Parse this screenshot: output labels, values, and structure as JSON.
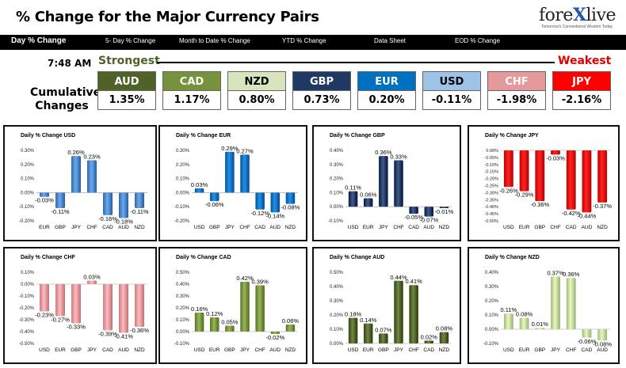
{
  "header": {
    "title": "% Change for the Major Currency Pairs",
    "logo_text": "forexlive",
    "logo_tag": "Tomorrow's Conventional Wisdom Today"
  },
  "tabs": [
    {
      "label": "Day % Change",
      "active": true
    },
    {
      "label": "5- Day % Change"
    },
    {
      "label": "Month to Date % Change"
    },
    {
      "label": "YTD % Change"
    },
    {
      "label": "Data Sheet"
    },
    {
      "label": "EOD % Change"
    }
  ],
  "time": "7:48 AM",
  "strongest_label": "Strongest",
  "weakest_label": "Weakest",
  "cumulative_label": "Cumulative Changes",
  "currencies": [
    {
      "name": "AUD",
      "value": "1.35%",
      "bg": "#4f6228",
      "fg": "#ffffff"
    },
    {
      "name": "CAD",
      "value": "1.17%",
      "bg": "#76923c",
      "fg": "#ffffff"
    },
    {
      "name": "NZD",
      "value": "0.80%",
      "bg": "#d7e4bd",
      "fg": "#000000"
    },
    {
      "name": "GBP",
      "value": "0.73%",
      "bg": "#1f3864",
      "fg": "#ffffff"
    },
    {
      "name": "EUR",
      "value": "0.20%",
      "bg": "#0070c0",
      "fg": "#ffffff"
    },
    {
      "name": "USD",
      "value": "-0.11%",
      "bg": "#9dc3e6",
      "fg": "#000000"
    },
    {
      "name": "CHF",
      "value": "-1.98%",
      "bg": "#e6999b",
      "fg": "#ffffff"
    },
    {
      "name": "JPY",
      "value": "-2.16%",
      "bg": "#ff0000",
      "fg": "#ffffff"
    }
  ],
  "chart_data": [
    {
      "type": "bar",
      "title": "Daily % Change USD",
      "categories": [
        "EUR",
        "GBP",
        "JPY",
        "CHF",
        "CAD",
        "AUD",
        "NZD"
      ],
      "values": [
        -0.03,
        -0.11,
        0.26,
        0.23,
        -0.16,
        -0.18,
        -0.11
      ],
      "labels": [
        "-0.03%",
        "-0.11%",
        "0.26%",
        "0.23%",
        "-0.16%",
        "-0.18%",
        "-0.11%"
      ],
      "ylim": [
        -0.2,
        0.3
      ],
      "yticks": [
        "0.30%",
        "0.20%",
        "0.10%",
        "0.00%",
        "-0.10%",
        "-0.20%"
      ],
      "color": "#4a86c8"
    },
    {
      "type": "bar",
      "title": "Daily % Change EUR",
      "categories": [
        "USD",
        "GBP",
        "JPY",
        "CHF",
        "CAD",
        "AUD",
        "NZD"
      ],
      "values": [
        0.03,
        -0.06,
        0.29,
        0.27,
        -0.12,
        -0.14,
        -0.08
      ],
      "labels": [
        "0.03%",
        "-0.06%",
        "0.29%",
        "0.27%",
        "-0.12%",
        "-0.14%",
        "-0.08%"
      ],
      "ylim": [
        -0.2,
        0.3
      ],
      "yticks": [
        "0.30%",
        "0.20%",
        "0.10%",
        "0.00%",
        "-0.10%",
        "-0.20%"
      ],
      "color": "#0070c0"
    },
    {
      "type": "bar",
      "title": "Daily % Change GBP",
      "categories": [
        "USD",
        "EUR",
        "JPY",
        "CHF",
        "CAD",
        "AUD",
        "NZD"
      ],
      "values": [
        0.11,
        0.06,
        0.36,
        0.33,
        -0.05,
        -0.07,
        -0.01
      ],
      "labels": [
        "0.11%",
        "0.06%",
        "0.36%",
        "0.33%",
        "-0.05%",
        "-0.07%",
        "-0.01%"
      ],
      "ylim": [
        -0.1,
        0.4
      ],
      "yticks": [
        "0.40%",
        "0.30%",
        "0.20%",
        "0.10%",
        "0.00%",
        "-0.10%"
      ],
      "color": "#1f3864"
    },
    {
      "type": "bar",
      "title": "Daily % Change JPY",
      "categories": [
        "USD",
        "EUR",
        "GBP",
        "CHF",
        "CAD",
        "AUD",
        "NZD"
      ],
      "values": [
        -0.26,
        -0.29,
        -0.36,
        -0.03,
        -0.42,
        -0.44,
        -0.37
      ],
      "labels": [
        "-0.26%",
        "-0.29%",
        "-0.36%",
        "-0.03%",
        "-0.42%",
        "-0.44%",
        "-0.37%"
      ],
      "ylim": [
        -0.5,
        0.0
      ],
      "yticks": [
        "0.00%",
        "-0.05%",
        "-0.10%",
        "-0.15%",
        "-0.20%",
        "-0.25%",
        "-0.30%",
        "-0.35%",
        "-0.40%",
        "-0.45%",
        "-0.50%"
      ],
      "color": "#e00000"
    },
    {
      "type": "bar",
      "title": "Daily % Change CHF",
      "categories": [
        "USD",
        "EUR",
        "GBP",
        "JPY",
        "CAD",
        "AUD",
        "NZD"
      ],
      "values": [
        -0.23,
        -0.27,
        -0.33,
        0.03,
        -0.39,
        -0.41,
        -0.36
      ],
      "labels": [
        "-0.23%",
        "-0.27%",
        "-0.33%",
        "0.03%",
        "-0.39%",
        "-0.41%",
        "-0.36%"
      ],
      "ylim": [
        -0.5,
        0.1
      ],
      "yticks": [
        "0.10%",
        "0.00%",
        "-0.10%",
        "-0.20%",
        "-0.30%",
        "-0.40%",
        "-0.50%"
      ],
      "color": "#e6999b"
    },
    {
      "type": "bar",
      "title": "Daily % Change CAD",
      "categories": [
        "USD",
        "EUR",
        "GBP",
        "JPY",
        "CHF",
        "AUD",
        "NZD"
      ],
      "values": [
        0.16,
        0.12,
        0.05,
        0.42,
        0.39,
        -0.02,
        0.06
      ],
      "labels": [
        "0.16%",
        "0.12%",
        "0.05%",
        "0.42%",
        "0.39%",
        "-0.02%",
        "0.06%"
      ],
      "ylim": [
        -0.1,
        0.5
      ],
      "yticks": [
        "0.50%",
        "0.40%",
        "0.30%",
        "0.20%",
        "0.10%",
        "0.00%",
        "-0.10%"
      ],
      "color": "#76923c"
    },
    {
      "type": "bar",
      "title": "Daily % Change AUD",
      "categories": [
        "USD",
        "EUR",
        "GBP",
        "JPY",
        "CHF",
        "CAD",
        "NZD"
      ],
      "values": [
        0.18,
        0.14,
        0.07,
        0.44,
        0.41,
        0.02,
        0.08
      ],
      "labels": [
        "0.18%",
        "0.14%",
        "0.07%",
        "0.44%",
        "0.41%",
        "0.02%",
        "0.08%"
      ],
      "ylim": [
        0.0,
        0.5
      ],
      "yticks": [
        "0.50%",
        "0.40%",
        "0.30%",
        "0.20%",
        "0.10%",
        "0.00%"
      ],
      "color": "#4f6228"
    },
    {
      "type": "bar",
      "title": "Daily % Change NZD",
      "categories": [
        "USD",
        "EUR",
        "GBP",
        "JPY",
        "CHF",
        "CAD",
        "AUD"
      ],
      "values": [
        0.11,
        0.08,
        0.01,
        0.37,
        0.36,
        -0.06,
        -0.08
      ],
      "labels": [
        "0.11%",
        "0.08%",
        "0.01%",
        "0.37%",
        "0.36%",
        "-0.06%",
        "-0.08%"
      ],
      "ylim": [
        -0.1,
        0.4
      ],
      "yticks": [
        "0.40%",
        "0.30%",
        "0.20%",
        "0.10%",
        "0.00%",
        "-0.10%"
      ],
      "color": "#c3d69b"
    }
  ]
}
